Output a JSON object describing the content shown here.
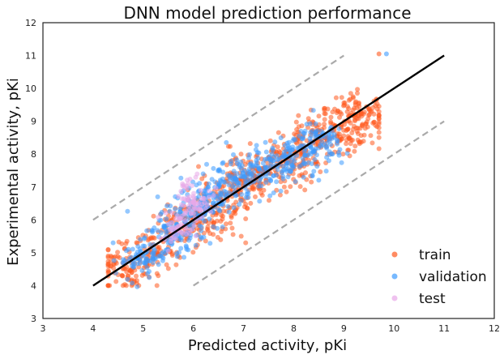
{
  "chart_data": {
    "type": "scatter",
    "title": "DNN model prediction performance",
    "xlabel": "Predicted activity, pKi",
    "ylabel": "Experimental activity, pKi",
    "xlim": [
      3,
      12
    ],
    "ylim": [
      3,
      12
    ],
    "x_ticks": [
      "3",
      "4",
      "5",
      "6",
      "7",
      "8",
      "9",
      "10",
      "11",
      "12"
    ],
    "y_ticks": [
      "3",
      "4",
      "5",
      "6",
      "7",
      "8",
      "9",
      "10",
      "11",
      "12"
    ],
    "grid": false,
    "legend_position": "lower-right",
    "series": [
      {
        "name": "train",
        "color": "#ff5a1f",
        "x_range": [
          4.3,
          9.7
        ],
        "y_range": [
          4.0,
          11.1
        ],
        "approx_points": 900,
        "center_points": [
          [
            4.6,
            4.5
          ],
          [
            5.2,
            5.1
          ],
          [
            5.8,
            5.7
          ],
          [
            6.3,
            6.2
          ],
          [
            6.8,
            6.9
          ],
          [
            7.3,
            7.3
          ],
          [
            7.8,
            7.8
          ],
          [
            8.3,
            8.3
          ],
          [
            8.8,
            8.7
          ],
          [
            9.3,
            9.2
          ]
        ],
        "outliers": [
          [
            9.7,
            11.05
          ]
        ]
      },
      {
        "name": "validation",
        "color": "#3d9bff",
        "x_range": [
          4.4,
          9.8
        ],
        "y_range": [
          3.9,
          11.05
        ],
        "approx_points": 650,
        "center_points": [
          [
            5.0,
            4.8
          ],
          [
            5.6,
            5.6
          ],
          [
            6.1,
            6.3
          ],
          [
            6.6,
            6.9
          ],
          [
            7.0,
            7.3
          ],
          [
            7.5,
            7.6
          ],
          [
            8.0,
            7.9
          ],
          [
            8.5,
            8.4
          ]
        ],
        "outliers": [
          [
            9.85,
            11.05
          ]
        ]
      },
      {
        "name": "test",
        "color": "#e8a8e8",
        "x_range": [
          5.3,
          6.7
        ],
        "y_range": [
          5.0,
          7.4
        ],
        "approx_points": 120,
        "center_points": [
          [
            5.6,
            5.7
          ],
          [
            5.8,
            6.0
          ],
          [
            6.0,
            6.3
          ],
          [
            6.2,
            6.6
          ],
          [
            5.9,
            6.9
          ]
        ]
      }
    ],
    "reference_lines": [
      {
        "kind": "identity",
        "style": "solid",
        "color": "#000000",
        "points": [
          [
            4,
            4
          ],
          [
            11,
            11
          ]
        ]
      },
      {
        "kind": "upper",
        "style": "dashed",
        "color": "#aaaaaa",
        "points": [
          [
            4,
            6
          ],
          [
            9,
            11
          ]
        ]
      },
      {
        "kind": "lower",
        "style": "dashed",
        "color": "#aaaaaa",
        "points": [
          [
            6,
            4
          ],
          [
            11,
            9
          ]
        ]
      }
    ]
  }
}
